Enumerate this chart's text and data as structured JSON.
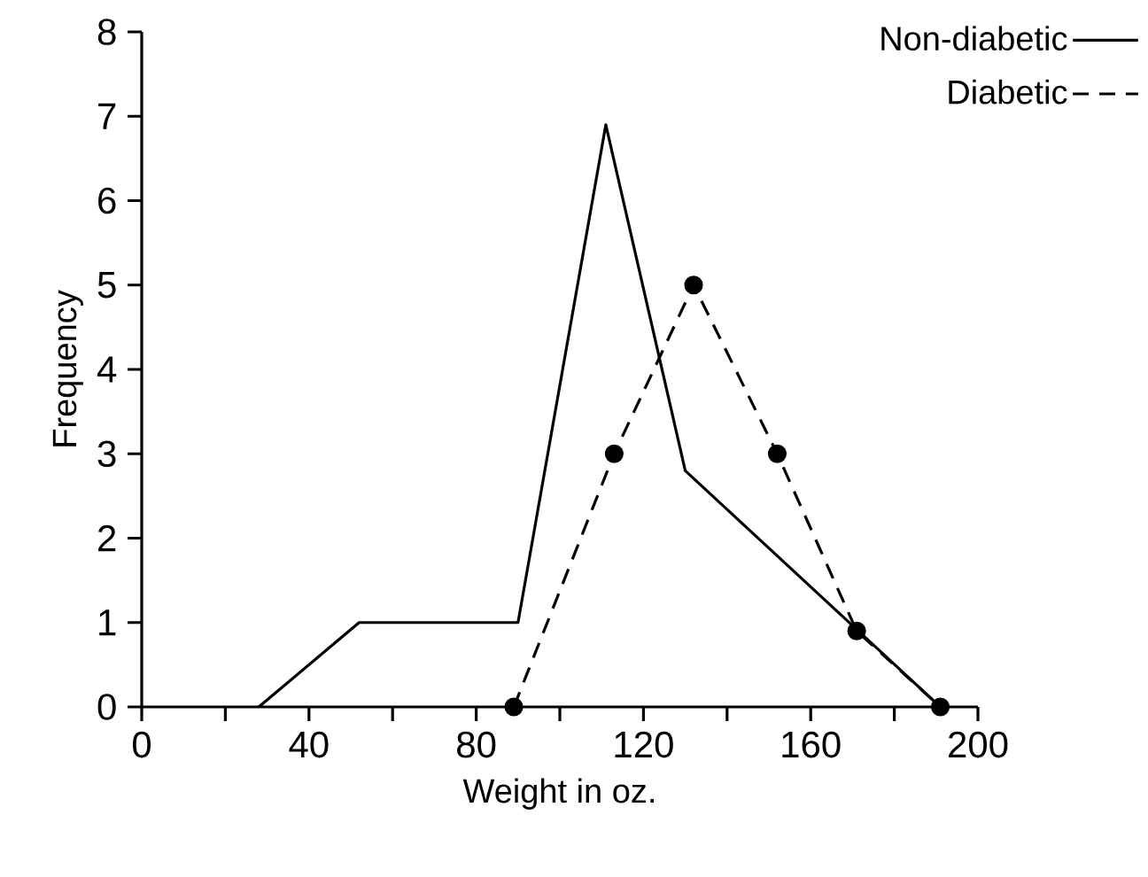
{
  "chart_data": {
    "type": "line",
    "xlabel": "Weight in oz.",
    "ylabel": "Frequency",
    "xlim": [
      0,
      200
    ],
    "ylim": [
      0,
      8
    ],
    "xticks": [
      0,
      {
        "value": 20,
        "label": null
      },
      40,
      {
        "value": 60,
        "label": null
      },
      80,
      {
        "value": 100,
        "label": null
      },
      120,
      {
        "value": 140,
        "label": null
      },
      160,
      {
        "value": 180,
        "label": null
      },
      200
    ],
    "yticks": [
      0,
      1,
      2,
      3,
      4,
      5,
      6,
      7,
      8
    ],
    "series": [
      {
        "name": "Non-diabetic",
        "color": "#000000",
        "line_style": "solid",
        "marker": "none",
        "x": [
          28,
          52,
          90,
          111,
          130,
          191
        ],
        "values": [
          0,
          1,
          1,
          6.9,
          2.8,
          0
        ]
      },
      {
        "name": "Diabetic",
        "color": "#000000",
        "line_style": "dashed",
        "marker": "circle",
        "x": [
          89,
          113,
          132,
          152,
          171,
          191
        ],
        "values": [
          0,
          3,
          5,
          3,
          0.9,
          0
        ]
      }
    ],
    "legend": "top right",
    "grid": false
  }
}
